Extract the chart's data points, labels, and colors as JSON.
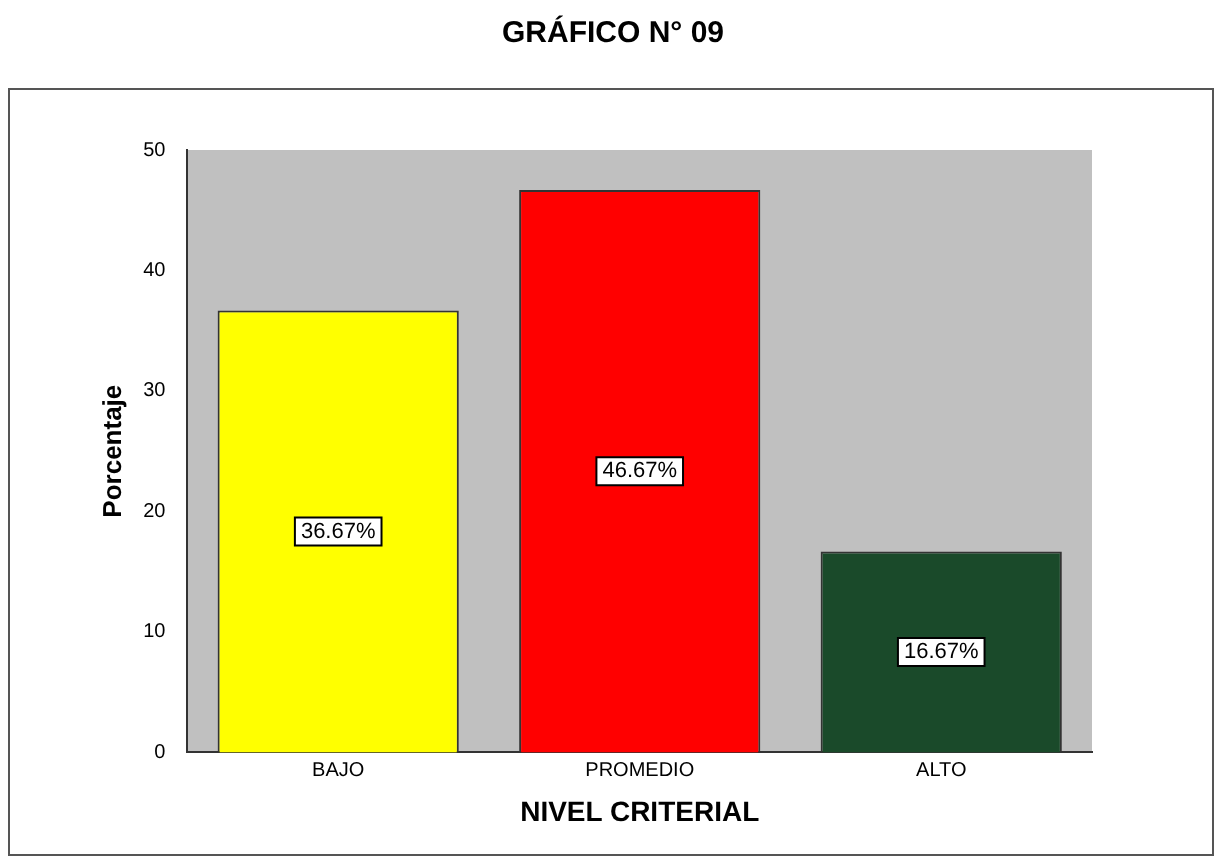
{
  "chart_data": {
    "type": "bar",
    "title": "GRÁFICO N° 09",
    "xlabel": "NIVEL CRITERIAL",
    "ylabel": "Porcentaje",
    "categories": [
      "BAJO",
      "PROMEDIO",
      "ALTO"
    ],
    "values": [
      36.67,
      46.67,
      16.67
    ],
    "colors": [
      "#ffff00",
      "#ff0000",
      "#1a4a2a"
    ],
    "value_labels": [
      "36.67%",
      "46.67%",
      "16.67%"
    ],
    "ylim": [
      0,
      50
    ],
    "yticks": [
      0,
      10,
      20,
      30,
      40,
      50
    ],
    "grid": false,
    "legend": false
  }
}
